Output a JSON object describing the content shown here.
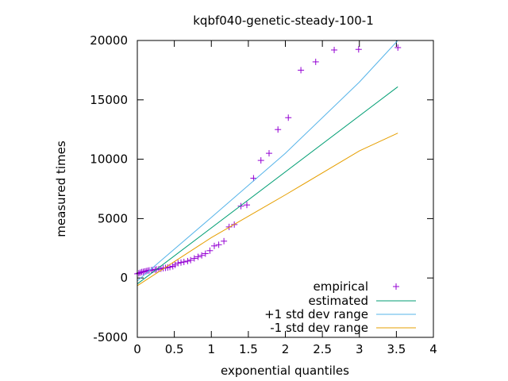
{
  "chart_data": {
    "type": "scatter",
    "title": "kqbf040-genetic-steady-100-1",
    "xlabel": "exponential quantiles",
    "ylabel": "measured times",
    "xlim": [
      0,
      4
    ],
    "ylim": [
      -5000,
      20000
    ],
    "xticks": [
      "0",
      "0.5",
      "1",
      "1.5",
      "2",
      "2.5",
      "3",
      "3.5",
      "4"
    ],
    "yticks": [
      "-5000",
      "0",
      "5000",
      "10000",
      "15000",
      "20000"
    ],
    "grid": false,
    "legend_position": "bottom-right",
    "series": [
      {
        "name": "empirical",
        "style": "points",
        "marker": "+",
        "color": "#9400d3",
        "points": [
          [
            0.0,
            350
          ],
          [
            0.02,
            400
          ],
          [
            0.04,
            450
          ],
          [
            0.06,
            500
          ],
          [
            0.08,
            520
          ],
          [
            0.1,
            550
          ],
          [
            0.12,
            580
          ],
          [
            0.14,
            610
          ],
          [
            0.16,
            640
          ],
          [
            0.19,
            660
          ],
          [
            0.21,
            680
          ],
          [
            0.24,
            700
          ],
          [
            0.26,
            720
          ],
          [
            0.29,
            750
          ],
          [
            0.32,
            780
          ],
          [
            0.35,
            820
          ],
          [
            0.38,
            850
          ],
          [
            0.41,
            880
          ],
          [
            0.44,
            920
          ],
          [
            0.48,
            980
          ],
          [
            0.51,
            1100
          ],
          [
            0.55,
            1250
          ],
          [
            0.59,
            1300
          ],
          [
            0.63,
            1350
          ],
          [
            0.68,
            1420
          ],
          [
            0.72,
            1500
          ],
          [
            0.77,
            1650
          ],
          [
            0.82,
            1780
          ],
          [
            0.87,
            1900
          ],
          [
            0.92,
            2050
          ],
          [
            0.98,
            2300
          ],
          [
            1.04,
            2700
          ],
          [
            1.1,
            2800
          ],
          [
            1.17,
            3100
          ],
          [
            1.24,
            4300
          ],
          [
            1.31,
            4500
          ],
          [
            1.4,
            6050
          ],
          [
            1.48,
            6150
          ],
          [
            1.57,
            8400
          ],
          [
            1.67,
            9900
          ],
          [
            1.78,
            10500
          ],
          [
            1.9,
            12500
          ],
          [
            2.04,
            13500
          ],
          [
            2.21,
            17500
          ],
          [
            2.41,
            18200
          ],
          [
            2.66,
            19200
          ],
          [
            2.99,
            19250
          ],
          [
            3.52,
            19400
          ]
        ]
      },
      {
        "name": "estimated",
        "style": "line",
        "color": "#009e73",
        "points": [
          [
            0.0,
            -500
          ],
          [
            3.52,
            16100
          ]
        ]
      },
      {
        "name": "+1 std dev range",
        "style": "line",
        "color": "#56b4e9",
        "points": [
          [
            0.0,
            -250
          ],
          [
            1.0,
            5100
          ],
          [
            2.0,
            10500
          ],
          [
            3.0,
            16500
          ],
          [
            3.52,
            20000
          ]
        ]
      },
      {
        "name": "-1 std dev range",
        "style": "line",
        "color": "#e69f00",
        "points": [
          [
            0.0,
            -650
          ],
          [
            1.0,
            3400
          ],
          [
            2.0,
            7000
          ],
          [
            3.0,
            10700
          ],
          [
            3.52,
            12200
          ]
        ]
      }
    ]
  }
}
